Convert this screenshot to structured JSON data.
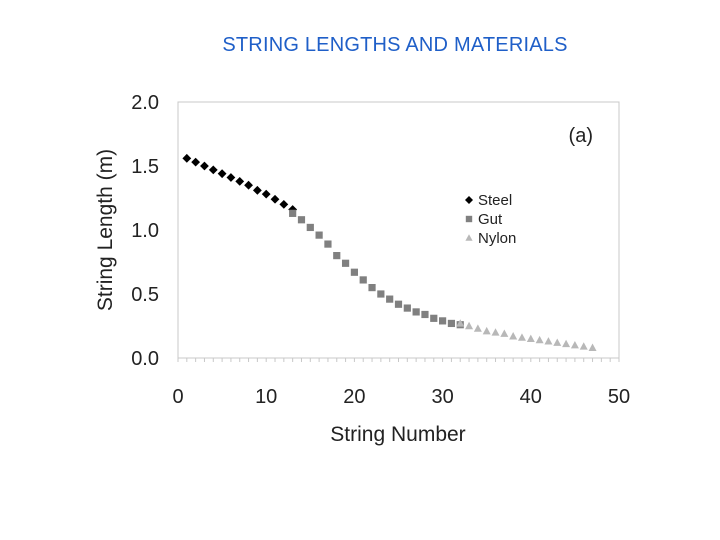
{
  "slide": {
    "title": "STRING LENGTHS AND  MATERIALS"
  },
  "chart_data": {
    "type": "scatter",
    "xlabel": "String Number",
    "ylabel": "String Length (m)",
    "annotation": "(a)",
    "xlim": [
      0,
      50
    ],
    "ylim": [
      0,
      2
    ],
    "x_ticks": [
      "0",
      "10",
      "20",
      "30",
      "40",
      "50"
    ],
    "y_ticks": [
      "0.0",
      "0.5",
      "1.0",
      "1.5",
      "2.0"
    ],
    "grid": false,
    "legend_position": "center-right",
    "series": [
      {
        "name": "Steel",
        "marker": "diamond",
        "color": "#000000",
        "x": [
          1,
          2,
          3,
          4,
          5,
          6,
          7,
          8,
          9,
          10,
          11,
          12,
          13
        ],
        "y": [
          1.56,
          1.53,
          1.5,
          1.47,
          1.44,
          1.41,
          1.38,
          1.35,
          1.31,
          1.28,
          1.24,
          1.2,
          1.16
        ]
      },
      {
        "name": "Gut",
        "marker": "square",
        "color": "#808080",
        "x": [
          13,
          14,
          15,
          16,
          17,
          18,
          19,
          20,
          21,
          22,
          23,
          24,
          25,
          26,
          27,
          28,
          29,
          30,
          31,
          32
        ],
        "y": [
          1.13,
          1.08,
          1.02,
          0.96,
          0.89,
          0.8,
          0.74,
          0.67,
          0.61,
          0.55,
          0.5,
          0.46,
          0.42,
          0.39,
          0.36,
          0.34,
          0.31,
          0.29,
          0.27,
          0.26
        ]
      },
      {
        "name": "Nylon",
        "marker": "triangle",
        "color": "#b8b8b8",
        "x": [
          32,
          33,
          34,
          35,
          36,
          37,
          38,
          39,
          40,
          41,
          42,
          43,
          44,
          45,
          46,
          47
        ],
        "y": [
          0.27,
          0.25,
          0.23,
          0.21,
          0.2,
          0.19,
          0.17,
          0.16,
          0.15,
          0.14,
          0.13,
          0.12,
          0.11,
          0.1,
          0.09,
          0.08
        ]
      }
    ]
  }
}
